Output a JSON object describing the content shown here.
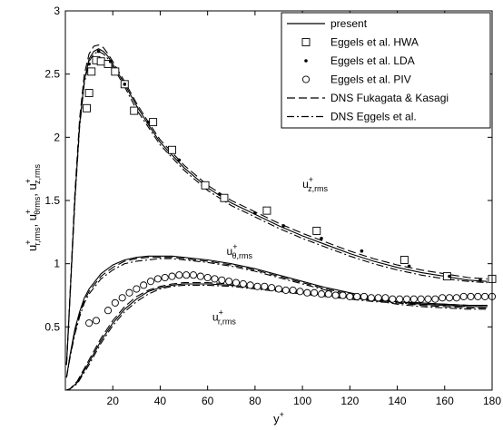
{
  "chart_data": {
    "type": "line",
    "xlabel": "y",
    "xlabel_sup": "+",
    "ylabel_parts": [
      {
        "base": "u",
        "sup": "+",
        "sub": "r,rms",
        "sep": ", "
      },
      {
        "base": "u",
        "sup": "+",
        "sub": "θrms",
        "sep": ", "
      },
      {
        "base": "u",
        "sup": "+",
        "sub": "z,rms",
        "sep": ""
      }
    ],
    "xlim": [
      0,
      180
    ],
    "ylim": [
      0,
      3
    ],
    "xticks": [
      20,
      40,
      60,
      80,
      100,
      120,
      140,
      160,
      180
    ],
    "yticks": [
      0.5,
      1,
      1.5,
      2,
      2.5,
      3
    ],
    "grid": false,
    "legend_position": "top-right",
    "legend": [
      {
        "label": "present",
        "style": "solid"
      },
      {
        "label": "Eggels et al. HWA",
        "style": "square"
      },
      {
        "label": "Eggels et al. LDA",
        "style": "dot"
      },
      {
        "label": "Eggels et al. PIV",
        "style": "circle"
      },
      {
        "label": "DNS Fukagata & Kasagi",
        "style": "dashed"
      },
      {
        "label": "DNS Eggels et al.",
        "style": "dashdot"
      }
    ],
    "annotations": [
      {
        "base": "u",
        "sup": "+",
        "sub": "z,rms",
        "x": 100,
        "y": 1.6
      },
      {
        "base": "u",
        "sup": "+",
        "sub": "θ,rms",
        "x": 68,
        "y": 1.07
      },
      {
        "base": "u",
        "sup": "+",
        "sub": "r,rms",
        "x": 62,
        "y": 0.55
      }
    ],
    "lines": [
      {
        "component": "z",
        "style": "solid",
        "x": [
          0.5,
          2,
          4,
          6,
          8,
          10,
          12,
          14,
          16,
          18,
          20,
          25,
          30,
          35,
          40,
          50,
          60,
          70,
          80,
          90,
          100,
          110,
          120,
          130,
          140,
          150,
          160,
          170,
          178
        ],
        "y": [
          0.2,
          0.75,
          1.5,
          2.1,
          2.45,
          2.62,
          2.68,
          2.7,
          2.68,
          2.64,
          2.58,
          2.42,
          2.25,
          2.1,
          1.96,
          1.76,
          1.6,
          1.48,
          1.39,
          1.3,
          1.22,
          1.15,
          1.08,
          1.02,
          0.97,
          0.93,
          0.9,
          0.87,
          0.86
        ]
      },
      {
        "component": "z",
        "style": "dashed",
        "x": [
          0.5,
          2,
          4,
          6,
          8,
          10,
          12,
          14,
          16,
          18,
          20,
          25,
          30,
          35,
          40,
          50,
          60,
          70,
          80,
          90,
          100,
          110,
          120,
          130,
          140,
          150,
          160,
          170,
          178
        ],
        "y": [
          0.2,
          0.78,
          1.55,
          2.15,
          2.5,
          2.66,
          2.72,
          2.73,
          2.71,
          2.66,
          2.6,
          2.44,
          2.27,
          2.12,
          1.98,
          1.78,
          1.62,
          1.5,
          1.41,
          1.32,
          1.24,
          1.17,
          1.1,
          1.04,
          0.99,
          0.95,
          0.92,
          0.89,
          0.88
        ]
      },
      {
        "component": "z",
        "style": "dashdot",
        "x": [
          0.5,
          2,
          4,
          6,
          8,
          10,
          12,
          14,
          16,
          18,
          20,
          25,
          30,
          35,
          40,
          50,
          60,
          70,
          80,
          90,
          100,
          110,
          120,
          130,
          140,
          150,
          160,
          170,
          178
        ],
        "y": [
          0.2,
          0.74,
          1.48,
          2.08,
          2.43,
          2.6,
          2.66,
          2.68,
          2.66,
          2.62,
          2.56,
          2.4,
          2.22,
          2.08,
          1.94,
          1.74,
          1.58,
          1.46,
          1.37,
          1.28,
          1.2,
          1.13,
          1.06,
          1.0,
          0.95,
          0.91,
          0.88,
          0.86,
          0.85
        ]
      },
      {
        "component": "theta",
        "style": "solid",
        "x": [
          0.5,
          2,
          4,
          6,
          8,
          10,
          15,
          20,
          25,
          30,
          35,
          40,
          45,
          50,
          60,
          70,
          80,
          90,
          100,
          110,
          120,
          130,
          140,
          150,
          160,
          170,
          178
        ],
        "y": [
          0.1,
          0.28,
          0.48,
          0.62,
          0.73,
          0.8,
          0.92,
          0.99,
          1.03,
          1.05,
          1.06,
          1.06,
          1.06,
          1.05,
          1.03,
          1.0,
          0.96,
          0.91,
          0.86,
          0.81,
          0.77,
          0.73,
          0.7,
          0.68,
          0.67,
          0.66,
          0.66
        ]
      },
      {
        "component": "theta",
        "style": "dashed",
        "x": [
          0.5,
          2,
          4,
          6,
          8,
          10,
          15,
          20,
          25,
          30,
          35,
          40,
          45,
          50,
          60,
          70,
          80,
          90,
          100,
          110,
          120,
          130,
          140,
          150,
          160,
          170,
          178
        ],
        "y": [
          0.1,
          0.27,
          0.46,
          0.6,
          0.71,
          0.78,
          0.9,
          0.97,
          1.02,
          1.04,
          1.05,
          1.05,
          1.05,
          1.04,
          1.02,
          0.99,
          0.95,
          0.9,
          0.85,
          0.8,
          0.76,
          0.72,
          0.69,
          0.67,
          0.66,
          0.65,
          0.65
        ]
      },
      {
        "component": "theta",
        "style": "dashdot",
        "x": [
          0.5,
          2,
          4,
          6,
          8,
          10,
          15,
          20,
          25,
          30,
          35,
          40,
          45,
          50,
          60,
          70,
          80,
          90,
          100,
          110,
          120,
          130,
          140,
          150,
          160,
          170,
          178
        ],
        "y": [
          0.1,
          0.26,
          0.44,
          0.58,
          0.69,
          0.76,
          0.88,
          0.95,
          1.0,
          1.02,
          1.03,
          1.04,
          1.04,
          1.03,
          1.01,
          0.98,
          0.94,
          0.89,
          0.84,
          0.79,
          0.75,
          0.71,
          0.68,
          0.66,
          0.65,
          0.64,
          0.64
        ]
      },
      {
        "component": "r",
        "style": "solid",
        "x": [
          0.5,
          2,
          5,
          10,
          15,
          20,
          25,
          30,
          35,
          40,
          45,
          50,
          55,
          60,
          70,
          80,
          90,
          100,
          110,
          120,
          130,
          140,
          150,
          160,
          170,
          178
        ],
        "y": [
          0.0,
          0.01,
          0.06,
          0.22,
          0.39,
          0.53,
          0.64,
          0.72,
          0.78,
          0.81,
          0.83,
          0.84,
          0.84,
          0.84,
          0.83,
          0.81,
          0.79,
          0.77,
          0.75,
          0.73,
          0.71,
          0.7,
          0.69,
          0.68,
          0.67,
          0.67
        ]
      },
      {
        "component": "r",
        "style": "dashed",
        "x": [
          0.5,
          2,
          5,
          10,
          15,
          20,
          25,
          30,
          35,
          40,
          45,
          50,
          55,
          60,
          70,
          80,
          90,
          100,
          110,
          120,
          130,
          140,
          150,
          160,
          170,
          178
        ],
        "y": [
          0.0,
          0.01,
          0.07,
          0.24,
          0.41,
          0.55,
          0.66,
          0.74,
          0.79,
          0.82,
          0.84,
          0.85,
          0.85,
          0.85,
          0.84,
          0.82,
          0.8,
          0.78,
          0.76,
          0.74,
          0.72,
          0.7,
          0.69,
          0.68,
          0.67,
          0.67
        ]
      },
      {
        "component": "r",
        "style": "dashdot",
        "x": [
          0.5,
          2,
          5,
          10,
          15,
          20,
          25,
          30,
          35,
          40,
          45,
          50,
          55,
          60,
          70,
          80,
          90,
          100,
          110,
          120,
          130,
          140,
          150,
          160,
          170,
          178
        ],
        "y": [
          0.0,
          0.01,
          0.05,
          0.2,
          0.37,
          0.51,
          0.62,
          0.7,
          0.76,
          0.8,
          0.82,
          0.83,
          0.83,
          0.83,
          0.82,
          0.8,
          0.78,
          0.76,
          0.74,
          0.72,
          0.7,
          0.69,
          0.68,
          0.67,
          0.66,
          0.66
        ]
      }
    ],
    "markers": [
      {
        "series": "Eggels et al. HWA",
        "shape": "square",
        "x": [
          9,
          10,
          11,
          13,
          15,
          18,
          21,
          25,
          29,
          37,
          45,
          59,
          67,
          85,
          106,
          143,
          161,
          180
        ],
        "y": [
          2.23,
          2.35,
          2.52,
          2.61,
          2.6,
          2.58,
          2.52,
          2.42,
          2.21,
          2.12,
          1.9,
          1.62,
          1.52,
          1.42,
          1.26,
          1.03,
          0.9,
          0.88
        ]
      },
      {
        "series": "Eggels et al. LDA",
        "shape": "dot",
        "x": [
          10,
          14,
          19,
          25,
          35,
          48,
          65,
          80,
          92,
          108,
          125,
          145,
          162,
          175
        ],
        "y": [
          2.58,
          2.68,
          2.6,
          2.42,
          2.12,
          1.82,
          1.55,
          1.4,
          1.3,
          1.2,
          1.1,
          0.98,
          0.9,
          0.87
        ]
      },
      {
        "series": "Eggels et al. PIV",
        "shape": "circle",
        "x": [
          10,
          13,
          18,
          21,
          24,
          27,
          30,
          33,
          36,
          39,
          42,
          45,
          48,
          51,
          54,
          57,
          60,
          63,
          66,
          69,
          72,
          75,
          78,
          81,
          84,
          87,
          90,
          93,
          96,
          99,
          102,
          105,
          108,
          111,
          114,
          117,
          120,
          123,
          126,
          129,
          132,
          135,
          138,
          141,
          144,
          147,
          150,
          153,
          156,
          159,
          162,
          165,
          168,
          171,
          174,
          177,
          180
        ],
        "y": [
          0.53,
          0.55,
          0.63,
          0.69,
          0.73,
          0.77,
          0.8,
          0.83,
          0.86,
          0.88,
          0.89,
          0.9,
          0.91,
          0.91,
          0.91,
          0.9,
          0.89,
          0.88,
          0.87,
          0.86,
          0.85,
          0.84,
          0.83,
          0.82,
          0.82,
          0.81,
          0.8,
          0.79,
          0.79,
          0.78,
          0.77,
          0.77,
          0.76,
          0.76,
          0.75,
          0.75,
          0.74,
          0.74,
          0.74,
          0.73,
          0.73,
          0.73,
          0.72,
          0.72,
          0.72,
          0.72,
          0.72,
          0.72,
          0.72,
          0.73,
          0.73,
          0.73,
          0.74,
          0.74,
          0.74,
          0.74,
          0.74
        ]
      }
    ]
  }
}
